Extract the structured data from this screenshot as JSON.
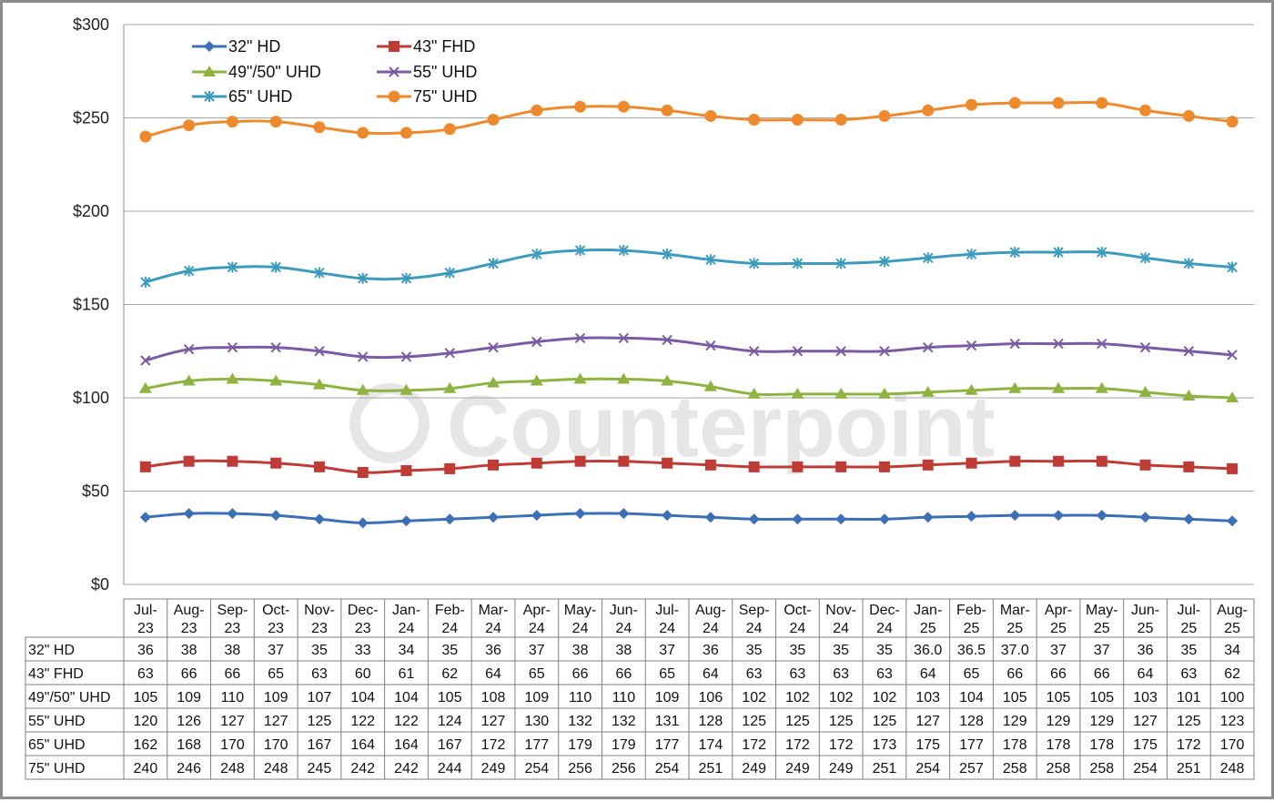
{
  "watermark": "Counterpoint",
  "chart_data": {
    "type": "line",
    "title": "",
    "xlabel": "",
    "ylabel": "",
    "ylim": [
      0,
      300
    ],
    "y_ticks": [
      "$0",
      "$50",
      "$100",
      "$150",
      "$200",
      "$250",
      "$300"
    ],
    "y_tick_values": [
      0,
      50,
      100,
      150,
      200,
      250,
      300
    ],
    "grid": "horizontal",
    "legend_position": "top-left",
    "categories": [
      [
        "Jul-",
        "23"
      ],
      [
        "Aug-",
        "23"
      ],
      [
        "Sep-",
        "23"
      ],
      [
        "Oct-",
        "23"
      ],
      [
        "Nov-",
        "23"
      ],
      [
        "Dec-",
        "23"
      ],
      [
        "Jan-",
        "24"
      ],
      [
        "Feb-",
        "24"
      ],
      [
        "Mar-",
        "24"
      ],
      [
        "Apr-",
        "24"
      ],
      [
        "May-",
        "24"
      ],
      [
        "Jun-",
        "24"
      ],
      [
        "Jul-",
        "24"
      ],
      [
        "Aug-",
        "24"
      ],
      [
        "Sep-",
        "24"
      ],
      [
        "Oct-",
        "24"
      ],
      [
        "Nov-",
        "24"
      ],
      [
        "Dec-",
        "24"
      ],
      [
        "Jan-",
        "25"
      ],
      [
        "Feb-",
        "25"
      ],
      [
        "Mar-",
        "25"
      ],
      [
        "Apr-",
        "25"
      ],
      [
        "May-",
        "25"
      ],
      [
        "Jun-",
        "25"
      ],
      [
        "Jul-",
        "25"
      ],
      [
        "Aug-",
        "25"
      ]
    ],
    "series": [
      {
        "name": "32\" HD",
        "color": "#3d6fb6",
        "marker": "diamond",
        "values": [
          36,
          38,
          38,
          37,
          35,
          33,
          34,
          35,
          36,
          37,
          38,
          38,
          37,
          36,
          35,
          35,
          35,
          35,
          36.0,
          36.5,
          37.0,
          37,
          37,
          36,
          35,
          34
        ],
        "labels": [
          "36",
          "38",
          "38",
          "37",
          "35",
          "33",
          "34",
          "35",
          "36",
          "37",
          "38",
          "38",
          "37",
          "36",
          "35",
          "35",
          "35",
          "35",
          "36.0",
          "36.5",
          "37.0",
          "37",
          "37",
          "36",
          "35",
          "34"
        ]
      },
      {
        "name": "43\" FHD",
        "color": "#bf3b36",
        "marker": "square",
        "values": [
          63,
          66,
          66,
          65,
          63,
          60,
          61,
          62,
          64,
          65,
          66,
          66,
          65,
          64,
          63,
          63,
          63,
          63,
          64,
          65,
          66,
          66,
          66,
          64,
          63,
          62
        ],
        "labels": [
          "63",
          "66",
          "66",
          "65",
          "63",
          "60",
          "61",
          "62",
          "64",
          "65",
          "66",
          "66",
          "65",
          "64",
          "63",
          "63",
          "63",
          "63",
          "64",
          "65",
          "66",
          "66",
          "66",
          "64",
          "63",
          "62"
        ]
      },
      {
        "name": "49\"/50\" UHD",
        "color": "#8db440",
        "marker": "triangle",
        "values": [
          105,
          109,
          110,
          109,
          107,
          104,
          104,
          105,
          108,
          109,
          110,
          110,
          109,
          106,
          102,
          102,
          102,
          102,
          103,
          104,
          105,
          105,
          105,
          103,
          101,
          100
        ],
        "labels": [
          "105",
          "109",
          "110",
          "109",
          "107",
          "104",
          "104",
          "105",
          "108",
          "109",
          "110",
          "110",
          "109",
          "106",
          "102",
          "102",
          "102",
          "102",
          "103",
          "104",
          "105",
          "105",
          "105",
          "103",
          "101",
          "100"
        ]
      },
      {
        "name": "55\" UHD",
        "color": "#7b5ba3",
        "marker": "x",
        "values": [
          120,
          126,
          127,
          127,
          125,
          122,
          122,
          124,
          127,
          130,
          132,
          132,
          131,
          128,
          125,
          125,
          125,
          125,
          127,
          128,
          129,
          129,
          129,
          127,
          125,
          123
        ],
        "labels": [
          "120",
          "126",
          "127",
          "127",
          "125",
          "122",
          "122",
          "124",
          "127",
          "130",
          "132",
          "132",
          "131",
          "128",
          "125",
          "125",
          "125",
          "125",
          "127",
          "128",
          "129",
          "129",
          "129",
          "127",
          "125",
          "123"
        ]
      },
      {
        "name": "65\" UHD",
        "color": "#3d9bbd",
        "marker": "star",
        "values": [
          162,
          168,
          170,
          170,
          167,
          164,
          164,
          167,
          172,
          177,
          179,
          179,
          177,
          174,
          172,
          172,
          172,
          173,
          175,
          177,
          178,
          178,
          178,
          175,
          172,
          170
        ],
        "labels": [
          "162",
          "168",
          "170",
          "170",
          "167",
          "164",
          "164",
          "167",
          "172",
          "177",
          "179",
          "179",
          "177",
          "174",
          "172",
          "172",
          "172",
          "173",
          "175",
          "177",
          "178",
          "178",
          "178",
          "175",
          "172",
          "170"
        ]
      },
      {
        "name": "75\" UHD",
        "color": "#ee8a2e",
        "marker": "circle",
        "values": [
          240,
          246,
          248,
          248,
          245,
          242,
          242,
          244,
          249,
          254,
          256,
          256,
          254,
          251,
          249,
          249,
          249,
          251,
          254,
          257,
          258,
          258,
          258,
          254,
          251,
          248
        ],
        "labels": [
          "240",
          "246",
          "248",
          "248",
          "245",
          "242",
          "242",
          "244",
          "249",
          "254",
          "256",
          "256",
          "254",
          "251",
          "249",
          "249",
          "249",
          "251",
          "254",
          "257",
          "258",
          "258",
          "258",
          "254",
          "251",
          "248"
        ]
      }
    ]
  }
}
